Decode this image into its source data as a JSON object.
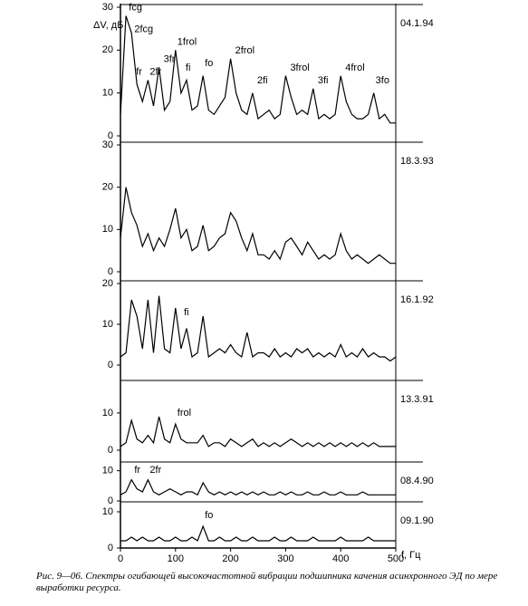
{
  "chart_data": [
    {
      "type": "line",
      "date": "04.1.94",
      "ylabel": "ΔV, дБ",
      "ylim": [
        0,
        30
      ],
      "yticks": [
        0,
        10,
        20,
        30
      ],
      "xlim": [
        0,
        500
      ],
      "color": "#000000",
      "x": [
        0,
        10,
        20,
        30,
        40,
        50,
        60,
        70,
        80,
        90,
        100,
        110,
        120,
        130,
        140,
        150,
        160,
        170,
        180,
        190,
        200,
        210,
        220,
        230,
        240,
        250,
        260,
        270,
        280,
        290,
        300,
        310,
        320,
        330,
        340,
        350,
        360,
        370,
        380,
        390,
        400,
        410,
        420,
        430,
        440,
        450,
        460,
        470,
        480,
        490,
        500
      ],
      "values": [
        5,
        28,
        24,
        12,
        8,
        13,
        7,
        16,
        6,
        8,
        20,
        10,
        13,
        6,
        7,
        14,
        6,
        5,
        7,
        9,
        18,
        10,
        6,
        5,
        10,
        4,
        5,
        6,
        4,
        5,
        14,
        9,
        5,
        6,
        5,
        11,
        4,
        5,
        4,
        5,
        14,
        8,
        5,
        4,
        4,
        5,
        10,
        4,
        5,
        3,
        3
      ],
      "annotations": [
        {
          "text": "fcg",
          "x": 12,
          "y": 29
        },
        {
          "text": "2fcg",
          "x": 22,
          "y": 24
        },
        {
          "text": "fr",
          "x": 25,
          "y": 14
        },
        {
          "text": "2fr",
          "x": 50,
          "y": 14
        },
        {
          "text": "3fr",
          "x": 75,
          "y": 17
        },
        {
          "text": "1frol",
          "x": 100,
          "y": 21
        },
        {
          "text": "fi",
          "x": 115,
          "y": 15
        },
        {
          "text": "fo",
          "x": 150,
          "y": 16
        },
        {
          "text": "2frol",
          "x": 205,
          "y": 19
        },
        {
          "text": "2fi",
          "x": 245,
          "y": 12
        },
        {
          "text": "3frol",
          "x": 305,
          "y": 15
        },
        {
          "text": "3fi",
          "x": 355,
          "y": 12
        },
        {
          "text": "4frol",
          "x": 405,
          "y": 15
        },
        {
          "text": "3fo",
          "x": 460,
          "y": 12
        }
      ]
    },
    {
      "type": "line",
      "date": "18.3.93",
      "ylim": [
        0,
        30
      ],
      "yticks": [
        0,
        10,
        20,
        30
      ],
      "xlim": [
        0,
        500
      ],
      "color": "#000000",
      "x": [
        0,
        10,
        20,
        30,
        40,
        50,
        60,
        70,
        80,
        90,
        100,
        110,
        120,
        130,
        140,
        150,
        160,
        170,
        180,
        190,
        200,
        210,
        220,
        230,
        240,
        250,
        260,
        270,
        280,
        290,
        300,
        310,
        320,
        330,
        340,
        350,
        360,
        370,
        380,
        390,
        400,
        410,
        420,
        430,
        440,
        450,
        460,
        470,
        480,
        490,
        500
      ],
      "values": [
        8,
        20,
        14,
        11,
        6,
        9,
        5,
        8,
        6,
        10,
        15,
        8,
        10,
        5,
        6,
        11,
        5,
        6,
        8,
        9,
        14,
        12,
        8,
        5,
        9,
        4,
        4,
        3,
        5,
        3,
        7,
        8,
        6,
        4,
        7,
        5,
        3,
        4,
        3,
        4,
        9,
        5,
        3,
        4,
        3,
        2,
        3,
        4,
        3,
        2,
        2
      ]
    },
    {
      "type": "line",
      "date": "16.1.92",
      "ylim": [
        0,
        20
      ],
      "yticks": [
        0,
        10,
        20
      ],
      "xlim": [
        0,
        500
      ],
      "color": "#000000",
      "x": [
        0,
        10,
        20,
        30,
        40,
        50,
        60,
        70,
        80,
        90,
        100,
        110,
        120,
        130,
        140,
        150,
        160,
        170,
        180,
        190,
        200,
        210,
        220,
        230,
        240,
        250,
        260,
        270,
        280,
        290,
        300,
        310,
        320,
        330,
        340,
        350,
        360,
        370,
        380,
        390,
        400,
        410,
        420,
        430,
        440,
        450,
        460,
        470,
        480,
        490,
        500
      ],
      "values": [
        2,
        3,
        16,
        12,
        4,
        16,
        3,
        17,
        4,
        3,
        14,
        4,
        9,
        2,
        3,
        12,
        2,
        3,
        4,
        3,
        5,
        3,
        2,
        8,
        2,
        3,
        3,
        2,
        4,
        2,
        3,
        2,
        4,
        3,
        4,
        2,
        3,
        2,
        3,
        2,
        5,
        2,
        3,
        2,
        4,
        2,
        3,
        2,
        2,
        1,
        2
      ],
      "annotations": [
        {
          "text": "fi",
          "x": 112,
          "y": 12
        }
      ]
    },
    {
      "type": "line",
      "date": "13.3.91",
      "ylim": [
        0,
        18
      ],
      "yticks": [
        0,
        10
      ],
      "xlim": [
        0,
        500
      ],
      "color": "#000000",
      "x": [
        0,
        10,
        20,
        30,
        40,
        50,
        60,
        70,
        80,
        90,
        100,
        110,
        120,
        130,
        140,
        150,
        160,
        170,
        180,
        190,
        200,
        210,
        220,
        230,
        240,
        250,
        260,
        270,
        280,
        290,
        300,
        310,
        320,
        330,
        340,
        350,
        360,
        370,
        380,
        390,
        400,
        410,
        420,
        430,
        440,
        450,
        460,
        470,
        480,
        490,
        500
      ],
      "values": [
        1,
        2,
        8,
        3,
        2,
        4,
        2,
        9,
        3,
        2,
        7,
        3,
        2,
        2,
        2,
        4,
        1,
        2,
        2,
        1,
        3,
        2,
        1,
        2,
        3,
        1,
        2,
        1,
        2,
        1,
        2,
        3,
        2,
        1,
        2,
        1,
        2,
        1,
        2,
        1,
        2,
        1,
        2,
        1,
        2,
        1,
        2,
        1,
        1,
        1,
        1
      ],
      "annotations": [
        {
          "text": "frol",
          "x": 100,
          "y": 9
        }
      ]
    },
    {
      "type": "line",
      "date": "08.4.90",
      "ylim": [
        0,
        12
      ],
      "yticks": [
        0,
        10
      ],
      "xlim": [
        0,
        500
      ],
      "color": "#000000",
      "x": [
        0,
        10,
        20,
        30,
        40,
        50,
        60,
        70,
        80,
        90,
        100,
        110,
        120,
        130,
        140,
        150,
        160,
        170,
        180,
        190,
        200,
        210,
        220,
        230,
        240,
        250,
        260,
        270,
        280,
        290,
        300,
        310,
        320,
        330,
        340,
        350,
        360,
        370,
        380,
        390,
        400,
        410,
        420,
        430,
        440,
        450,
        460,
        470,
        480,
        490,
        500
      ],
      "values": [
        2,
        3,
        7,
        4,
        3,
        7,
        3,
        2,
        3,
        4,
        3,
        2,
        3,
        3,
        2,
        6,
        3,
        2,
        3,
        2,
        3,
        2,
        3,
        2,
        3,
        2,
        3,
        2,
        2,
        3,
        2,
        3,
        2,
        2,
        3,
        2,
        2,
        3,
        2,
        2,
        3,
        2,
        2,
        2,
        3,
        2,
        2,
        2,
        2,
        2,
        2
      ],
      "annotations": [
        {
          "text": "fr",
          "x": 22,
          "y": 9
        },
        {
          "text": "2fr",
          "x": 50,
          "y": 9
        }
      ]
    },
    {
      "type": "line",
      "date": "09.1.90",
      "ylim": [
        0,
        12
      ],
      "yticks": [
        0,
        10
      ],
      "xlim": [
        0,
        500
      ],
      "xticks": [
        0,
        100,
        200,
        300,
        400,
        500
      ],
      "xlabel": "f, Гц",
      "color": "#000000",
      "x": [
        0,
        10,
        20,
        30,
        40,
        50,
        60,
        70,
        80,
        90,
        100,
        110,
        120,
        130,
        140,
        150,
        160,
        170,
        180,
        190,
        200,
        210,
        220,
        230,
        240,
        250,
        260,
        270,
        280,
        290,
        300,
        310,
        320,
        330,
        340,
        350,
        360,
        370,
        380,
        390,
        400,
        410,
        420,
        430,
        440,
        450,
        460,
        470,
        480,
        490,
        500
      ],
      "values": [
        2,
        2,
        3,
        2,
        3,
        2,
        2,
        3,
        2,
        2,
        3,
        2,
        2,
        3,
        2,
        6,
        2,
        2,
        3,
        2,
        2,
        3,
        2,
        2,
        3,
        2,
        2,
        2,
        3,
        2,
        2,
        3,
        2,
        2,
        2,
        3,
        2,
        2,
        2,
        2,
        3,
        2,
        2,
        2,
        2,
        3,
        2,
        2,
        2,
        2,
        2
      ],
      "annotations": [
        {
          "text": "fo",
          "x": 150,
          "y": 8
        }
      ]
    }
  ],
  "caption": "Рис. 9—06. Спектры огибающей высокочастотной вибрации подшипника качения асинхронного ЭД по мере выработки ресурса."
}
